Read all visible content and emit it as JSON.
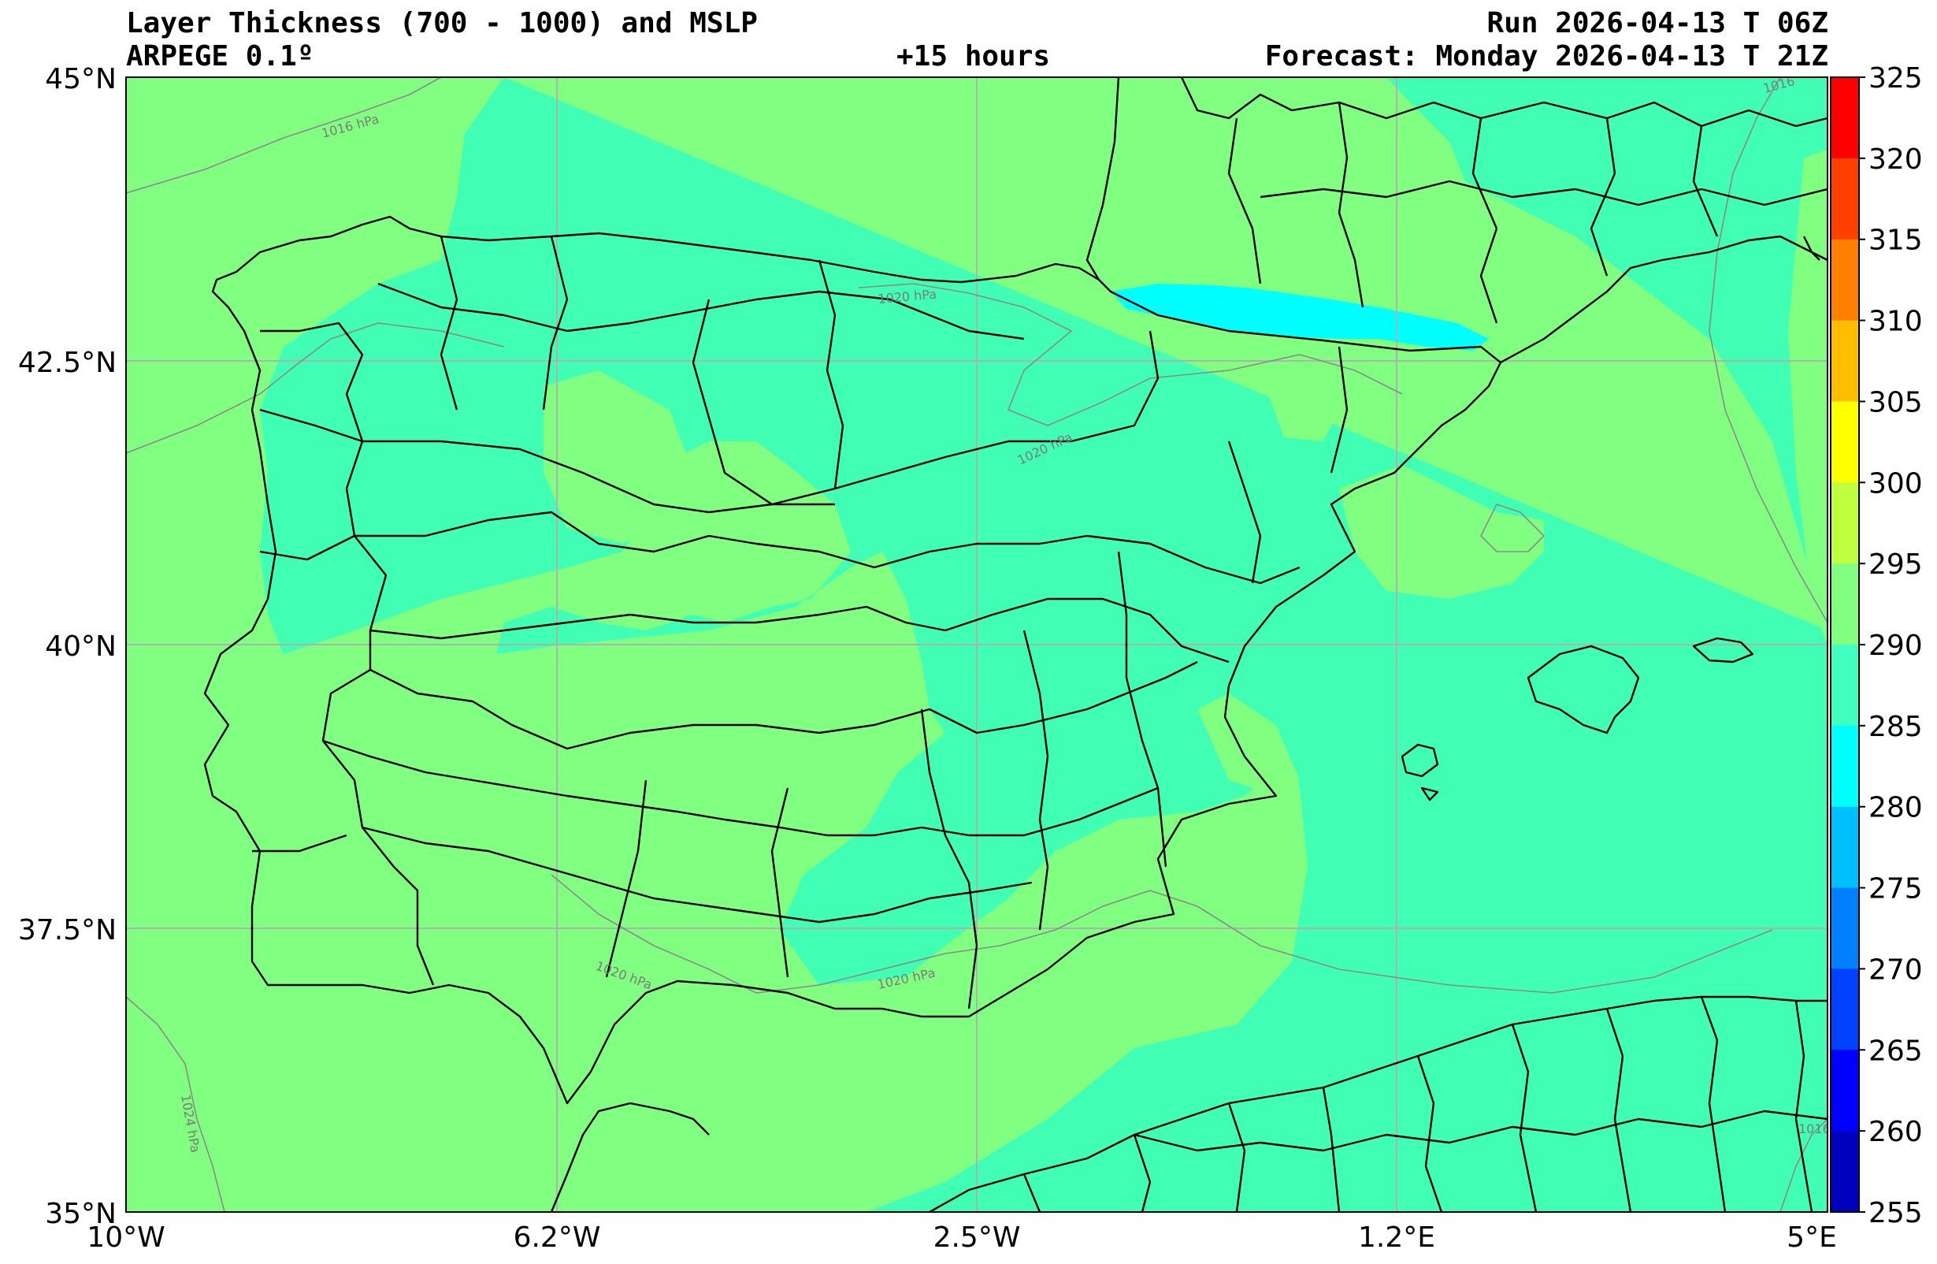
{
  "header": {
    "title": "Layer Thickness (700 - 1000) and MSLP",
    "model": "ARPEGE 0.1º",
    "lead_time": "+15 hours",
    "run": "Run 2026-04-13 T 06Z",
    "forecast": "Forecast: Monday 2026-04-13 T 21Z"
  },
  "axes": {
    "lat_labels": [
      "45°N",
      "42.5°N",
      "40°N",
      "37.5°N",
      "35°N"
    ],
    "lon_labels": [
      "10°W",
      "6.2°W",
      "2.5°W",
      "1.2°E",
      "5°E"
    ]
  },
  "colorbar": {
    "labels": [
      "325",
      "320",
      "315",
      "310",
      "305",
      "300",
      "295",
      "290",
      "285",
      "280",
      "275",
      "270",
      "265",
      "260",
      "255"
    ],
    "colors": [
      "#ff0000",
      "#ff4000",
      "#ff8000",
      "#ffbf00",
      "#ffff00",
      "#bfff40",
      "#80ff80",
      "#40ffbf",
      "#00ffff",
      "#00bfff",
      "#0080ff",
      "#0040ff",
      "#0000ff",
      "#0000bf"
    ]
  },
  "isobars": {
    "labels": [
      "1016 hPa",
      "1020 hPa",
      "1020 hPa",
      "1020 hPa",
      "1020 hPa",
      "1024 hPa",
      "1016",
      "1016"
    ]
  },
  "palette": {
    "ocean_green": "#80ff80",
    "land_teal": "#40ffb4",
    "cold_cyan": "#00ffff",
    "isobar": "#8a8a8a",
    "grid": "#b0b0b0",
    "border": "#000000"
  }
}
